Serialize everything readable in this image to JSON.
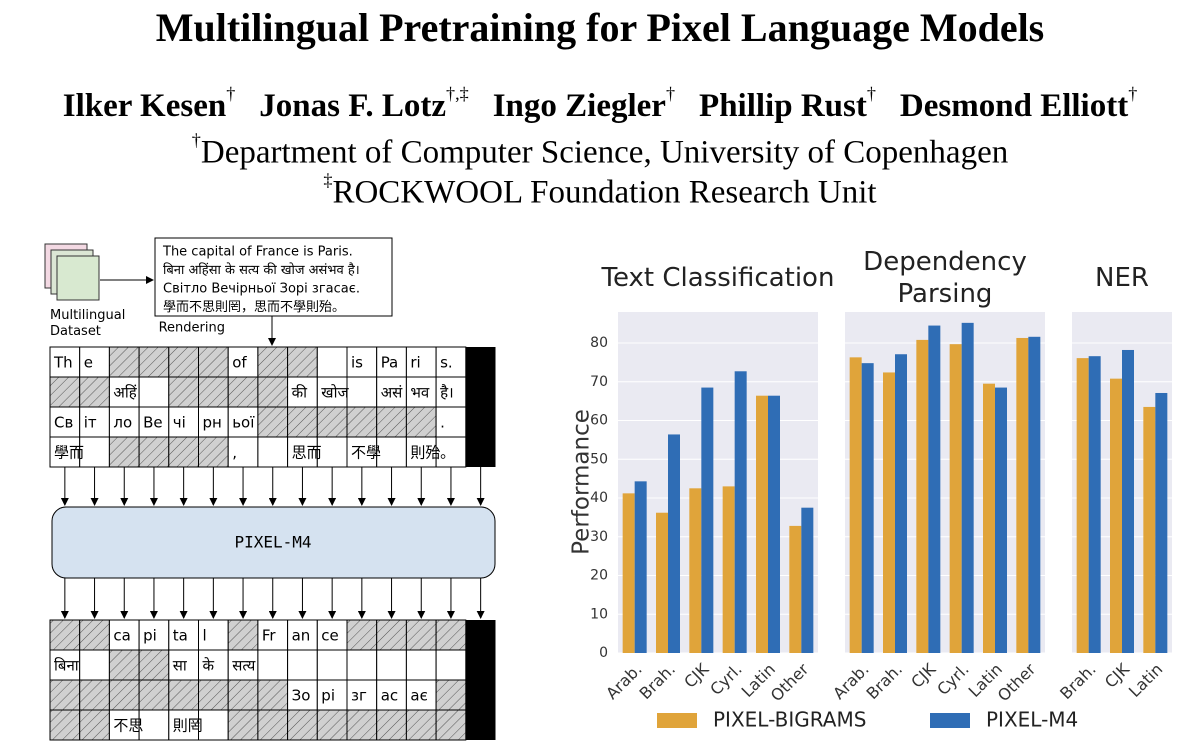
{
  "title": "Multilingual Pretraining for Pixel Language Models",
  "authors": [
    {
      "name": "Ilker Kesen",
      "marks": "†"
    },
    {
      "name": "Jonas F. Lotz",
      "marks": "†,‡"
    },
    {
      "name": "Ingo Ziegler",
      "marks": "†"
    },
    {
      "name": "Phillip Rust",
      "marks": "†"
    },
    {
      "name": "Desmond Elliott",
      "marks": "†"
    }
  ],
  "affiliations": [
    {
      "mark": "†",
      "name": "Department of Computer Science, University of Copenhagen"
    },
    {
      "mark": "‡",
      "name": "ROCKWOOL Foundation Research Unit"
    }
  ],
  "diagram": {
    "dataset_label": "Multilingual Dataset",
    "source_text": [
      "The capital of France is Paris.",
      "बिना अहिंसा के सत्य की खोज असंभव है।",
      "Світло Вечірньої Зорі згасає.",
      "學而不思則罔，思而不學則殆。"
    ],
    "rendering_label": "Rendering",
    "model_label": "PIXEL-M4",
    "input_patches": [
      [
        "Th",
        "e",
        null,
        null,
        null,
        null,
        "of",
        null,
        null,
        null,
        "is",
        "Pa",
        "ri",
        "s."
      ],
      [
        null,
        null,
        "अहिं",
        null,
        null,
        null,
        null,
        null,
        "की",
        "खोज",
        null,
        "असं",
        "भव",
        "है।"
      ],
      [
        "Св",
        "іт",
        "ло",
        "Ве",
        "чі",
        "рн",
        "ьої",
        null,
        null,
        null,
        null,
        null,
        null,
        "."
      ],
      [
        "學而",
        null,
        null,
        null,
        null,
        null,
        ",",
        null,
        "思而",
        null,
        "不學",
        null,
        "則殆",
        "。"
      ]
    ],
    "output_patches": [
      [
        null,
        null,
        "ca",
        "pi",
        "ta",
        "l",
        null,
        "Fr",
        "an",
        "ce",
        null,
        null,
        null,
        null
      ],
      [
        "बिना",
        null,
        null,
        null,
        "सा",
        "के",
        "सत्य",
        null,
        null,
        null,
        null,
        null,
        null,
        null
      ],
      [
        null,
        null,
        null,
        null,
        null,
        null,
        null,
        null,
        "Зо",
        "рі",
        "зг",
        "ас",
        "ає",
        null
      ],
      [
        null,
        null,
        "不思",
        null,
        "則罔",
        null,
        null,
        null,
        null,
        null,
        null,
        null,
        null,
        null
      ]
    ]
  },
  "chart_data": [
    {
      "type": "bar",
      "title": "Text Classification",
      "ylabel": "Performance",
      "categories": [
        "Arab.",
        "Brah.",
        "CJK",
        "Cyrl.",
        "Latin",
        "Other"
      ],
      "series": [
        {
          "name": "PIXEL-BIGRAMS",
          "color": "#e0a43a",
          "values": [
            41.2,
            36.2,
            42.5,
            43.0,
            66.4,
            32.8
          ]
        },
        {
          "name": "PIXEL-M4",
          "color": "#2f6db5",
          "values": [
            44.3,
            56.4,
            68.5,
            72.7,
            66.4,
            37.5
          ]
        }
      ],
      "ylim": [
        0,
        88
      ],
      "yticks": [
        0,
        10,
        20,
        30,
        40,
        50,
        60,
        70,
        80
      ],
      "grid": true
    },
    {
      "type": "bar",
      "title": "Dependency Parsing",
      "categories": [
        "Arab.",
        "Brah.",
        "CJK",
        "Cyrl.",
        "Latin",
        "Other"
      ],
      "series": [
        {
          "color": "#e0a43a",
          "values": [
            76.3,
            72.4,
            80.8,
            79.7,
            69.5,
            81.3
          ]
        },
        {
          "color": "#2f6db5",
          "values": [
            74.8,
            77.1,
            84.5,
            85.2,
            68.5,
            81.6
          ]
        }
      ],
      "ylim": [
        0,
        88
      ],
      "yticks": [
        0,
        10,
        20,
        30,
        40,
        50,
        60,
        70,
        80
      ],
      "grid": true
    },
    {
      "type": "bar",
      "title": "NER",
      "categories": [
        "Brah.",
        "CJK",
        "Latin"
      ],
      "series": [
        {
          "color": "#e0a43a",
          "values": [
            76.1,
            70.8,
            63.5
          ]
        },
        {
          "color": "#2f6db5",
          "values": [
            76.6,
            78.2,
            67.1
          ]
        }
      ],
      "ylim": [
        0,
        88
      ],
      "yticks": [
        0,
        10,
        20,
        30,
        40,
        50,
        60,
        70,
        80
      ],
      "grid": true
    }
  ]
}
